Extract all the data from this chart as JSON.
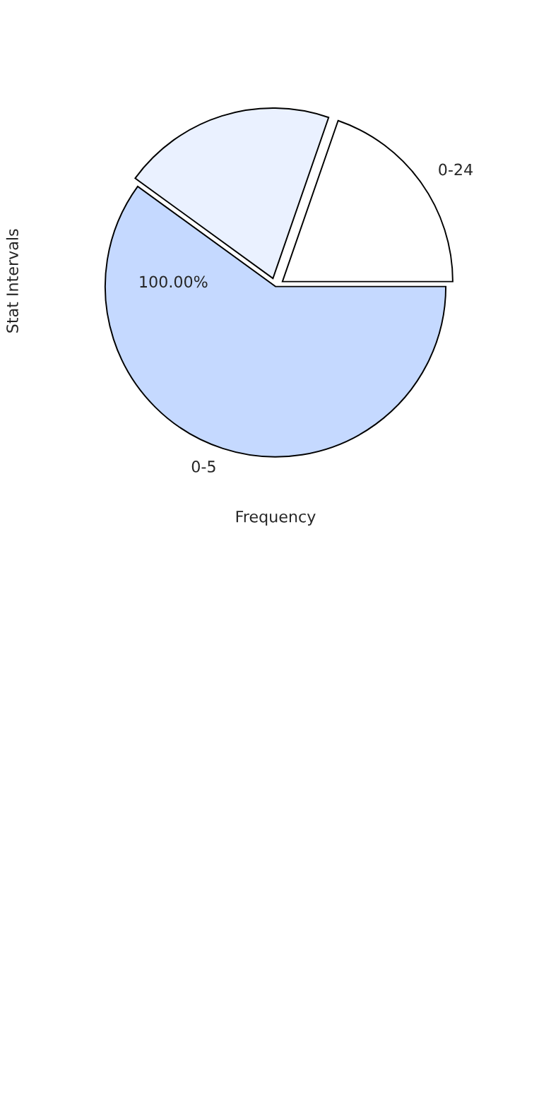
{
  "chart_data": {
    "type": "pie",
    "xlabel": "Frequency",
    "ylabel": "Stat Intervals",
    "categories": [
      "0-24",
      null,
      "0-5"
    ],
    "values": [
      19.7,
      20.3,
      60
    ],
    "colors": [
      "#ffffff",
      "#eaf1ff",
      "#c5d9ff"
    ],
    "annotations": [
      "100.00%"
    ]
  }
}
